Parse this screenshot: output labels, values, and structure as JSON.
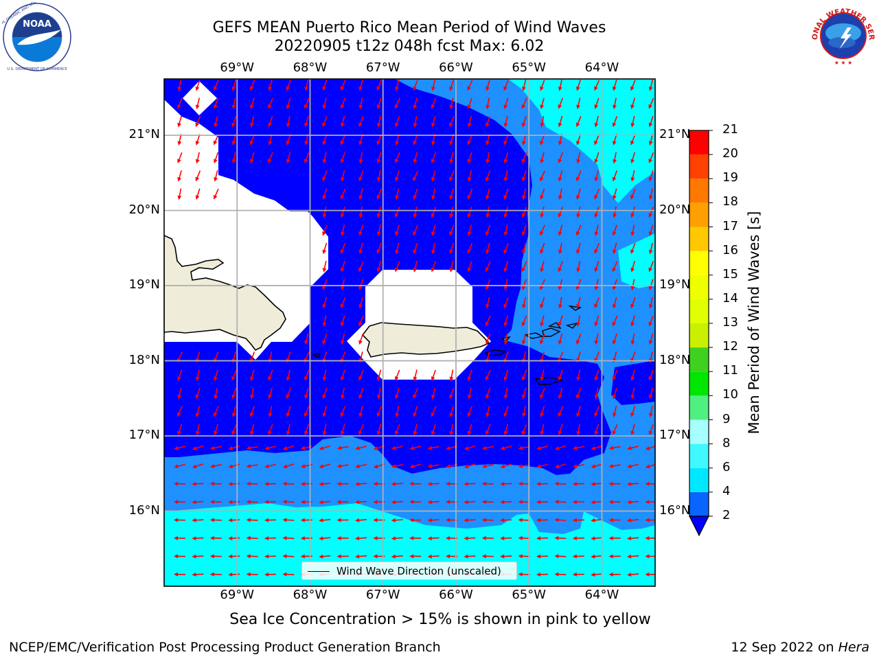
{
  "title": {
    "line1": "GEFS MEAN Puerto Rico Mean Period of Wind Waves",
    "line2": "20220905 t12z 048h fcst   Max: 6.02"
  },
  "logos": {
    "left": {
      "name": "noaa-logo",
      "text": "NOAA"
    },
    "right": {
      "name": "national-weather-service-logo",
      "text": "NATIONAL WEATHER SERVICE"
    }
  },
  "map": {
    "lon_labels": [
      "69°W",
      "68°W",
      "67°W",
      "66°W",
      "65°W",
      "64°W"
    ],
    "lat_labels": [
      "21°N",
      "20°N",
      "19°N",
      "18°N",
      "17°N",
      "16°N"
    ],
    "extent": {
      "lon_min": -70.0,
      "lon_max": -63.27,
      "lat_min": 15.0,
      "lat_max": 21.75
    },
    "colors": {
      "level_2_4": "#0000ff",
      "level_4_6": "#1e90ff",
      "level_6_8": "#00ffff",
      "land": "#efecd9",
      "arrows": "#ff0000",
      "grid": "#b0b0b0"
    },
    "arrow_direction": "south-southwest in the northern and central waters, westward south of 16.5°N"
  },
  "legend": {
    "label": "Wind Wave Direction (unscaled)"
  },
  "colorbar": {
    "label": "Mean Period of Wind Waves [s]",
    "ticks": [
      "2",
      "4",
      "6",
      "8",
      "9",
      "10",
      "11",
      "12",
      "13",
      "14",
      "15",
      "16",
      "17",
      "18",
      "19",
      "20",
      "21"
    ],
    "bins": [
      {
        "from": 2,
        "to": 4,
        "color": "#0a64ff"
      },
      {
        "from": 4,
        "to": 6,
        "color": "#00e8ff"
      },
      {
        "from": 6,
        "to": 8,
        "color": "#40f8ff"
      },
      {
        "from": 8,
        "to": 9,
        "color": "#a8ffff"
      },
      {
        "from": 9,
        "to": 10,
        "color": "#50f080"
      },
      {
        "from": 10,
        "to": 11,
        "color": "#00e600"
      },
      {
        "from": 11,
        "to": 12,
        "color": "#40d020"
      },
      {
        "from": 12,
        "to": 13,
        "color": "#c8f000"
      },
      {
        "from": 13,
        "to": 14,
        "color": "#e0ff00"
      },
      {
        "from": 14,
        "to": 15,
        "color": "#f0ff00"
      },
      {
        "from": 15,
        "to": 16,
        "color": "#ffff00"
      },
      {
        "from": 16,
        "to": 17,
        "color": "#ffc800"
      },
      {
        "from": 17,
        "to": 18,
        "color": "#ffa000"
      },
      {
        "from": 18,
        "to": 19,
        "color": "#ff7800"
      },
      {
        "from": 19,
        "to": 20,
        "color": "#ff4000"
      },
      {
        "from": 20,
        "to": 21,
        "color": "#ff0000"
      }
    ],
    "extend_below_color": "#0000ff"
  },
  "note": "Sea Ice Concentration > 15% is shown in pink to yellow",
  "footer": {
    "left": "NCEP/EMC/Verification Post Processing Product Generation Branch",
    "right_date": "12 Sep 2022 on ",
    "right_host": "Hera"
  }
}
